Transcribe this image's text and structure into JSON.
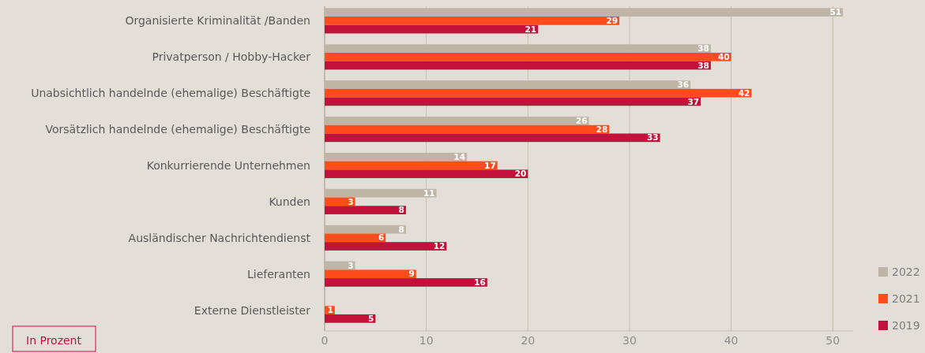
{
  "chart_data": {
    "type": "bar",
    "orientation": "horizontal",
    "categories": [
      "Organisierte Kriminalität /Banden",
      "Privatperson / Hobby-Hacker",
      "Unabsichtlich handelnde (ehemalige) Beschäftigte",
      "Vorsätzlich handelnde (ehemalige) Beschäftigte",
      "Konkurrierende Unternehmen",
      "Kunden",
      "Ausländischer Nachrichtendienst",
      "Lieferanten",
      "Externe Dienstleister"
    ],
    "series": [
      {
        "name": "2022",
        "color": "#bfb5a6",
        "values": [
          51,
          38,
          36,
          26,
          14,
          11,
          8,
          3,
          null
        ]
      },
      {
        "name": "2021",
        "color": "#ff4c1c",
        "values": [
          29,
          40,
          42,
          28,
          17,
          3,
          6,
          9,
          1
        ]
      },
      {
        "name": "2019",
        "color": "#c2123c",
        "values": [
          21,
          38,
          37,
          33,
          20,
          8,
          12,
          16,
          5
        ]
      }
    ],
    "xlim": [
      0,
      52
    ],
    "xticks": [
      0,
      10,
      20,
      30,
      40,
      50
    ],
    "grid": "x",
    "data_labels": true,
    "legend": "bottom right",
    "annotations": [
      "In Prozent"
    ]
  }
}
